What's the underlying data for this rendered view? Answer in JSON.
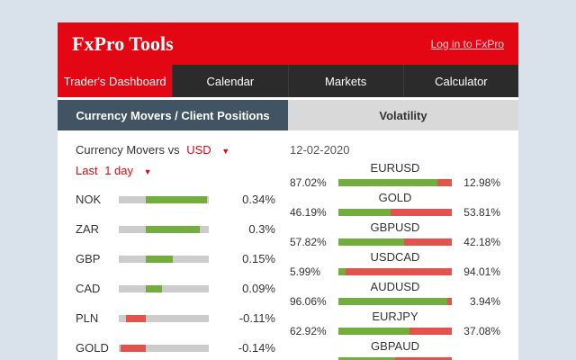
{
  "header": {
    "title": "FxPro Tools",
    "login_link": "Log in to FxPro"
  },
  "nav": {
    "tabs": [
      {
        "label": "Trader's Dashboard",
        "active": true
      },
      {
        "label": "Calendar",
        "active": false
      },
      {
        "label": "Markets",
        "active": false
      },
      {
        "label": "Calculator",
        "active": false
      }
    ]
  },
  "subnav": {
    "tabs": [
      {
        "label": "Currency Movers / Client Positions",
        "active": true
      },
      {
        "label": "Volatility",
        "active": false
      }
    ]
  },
  "movers": {
    "title_prefix": "Currency Movers vs",
    "currency": "USD",
    "period_prefix": "Last",
    "period": "1 day",
    "rows": [
      {
        "label": "NOK",
        "value": 0.34,
        "display": "0.34%"
      },
      {
        "label": "ZAR",
        "value": 0.3,
        "display": "0.3%"
      },
      {
        "label": "GBP",
        "value": 0.15,
        "display": "0.15%"
      },
      {
        "label": "CAD",
        "value": 0.09,
        "display": "0.09%"
      },
      {
        "label": "PLN",
        "value": -0.11,
        "display": "-0.11%"
      },
      {
        "label": "GOLD",
        "value": -0.14,
        "display": "-0.14%"
      }
    ]
  },
  "positions": {
    "date": "12-02-2020",
    "rows": [
      {
        "symbol": "EURUSD",
        "left": "87.02%",
        "right": "12.98%",
        "left_value": 87.02
      },
      {
        "symbol": "GOLD",
        "left": "46.19%",
        "right": "53.81%",
        "left_value": 46.19
      },
      {
        "symbol": "GBPUSD",
        "left": "57.82%",
        "right": "42.18%",
        "left_value": 57.82
      },
      {
        "symbol": "USDCAD",
        "left": "5.99%",
        "right": "94.01%",
        "left_value": 5.99
      },
      {
        "symbol": "AUDUSD",
        "left": "96.06%",
        "right": "3.94%",
        "left_value": 96.06
      },
      {
        "symbol": "EURJPY",
        "left": "62.92%",
        "right": "37.08%",
        "left_value": 62.92
      },
      {
        "symbol": "GBPAUD",
        "left": "",
        "right": "",
        "left_value": 50
      }
    ]
  },
  "colors": {
    "brand_red": "#e30613",
    "positive_green": "#72ad3d",
    "negative_red": "#e2534d",
    "active_subtab": "#415464"
  }
}
